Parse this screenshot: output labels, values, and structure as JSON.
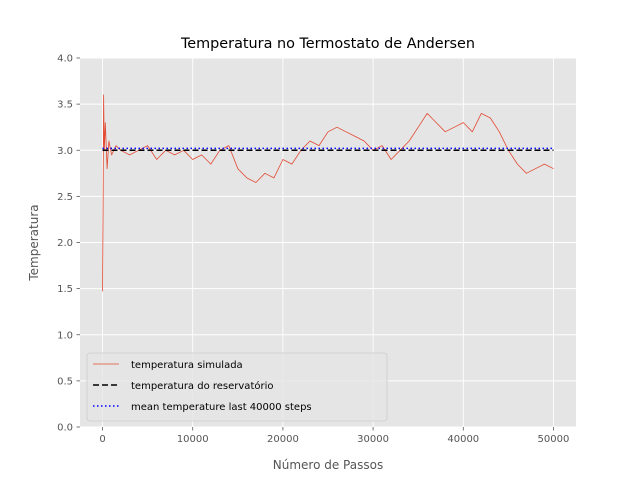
{
  "chart_data": {
    "type": "line",
    "title": "Temperatura no Termostato de Andersen",
    "xlabel": "Número de Passos",
    "ylabel": "Temperatura",
    "xlim": [
      -2500,
      52500
    ],
    "ylim": [
      0.0,
      4.0
    ],
    "xticks": [
      0,
      10000,
      20000,
      30000,
      40000,
      50000
    ],
    "yticks": [
      0.0,
      0.5,
      1.0,
      1.5,
      2.0,
      2.5,
      3.0,
      3.5,
      4.0
    ],
    "xtick_labels": [
      "0",
      "10000",
      "20000",
      "30000",
      "40000",
      "50000"
    ],
    "ytick_labels": [
      "0.0",
      "0.5",
      "1.0",
      "1.5",
      "2.0",
      "2.5",
      "3.0",
      "3.5",
      "4.0"
    ],
    "grid": true,
    "legend_placement": "lower-left",
    "series": [
      {
        "name": "temperatura simulada",
        "style": "solid",
        "color": "#e24a33",
        "x": [
          0,
          60,
          120,
          200,
          300,
          500,
          700,
          1000,
          1500,
          2000,
          3000,
          4000,
          5000,
          6000,
          7000,
          8000,
          9000,
          10000,
          11000,
          12000,
          13000,
          14000,
          15000,
          16000,
          17000,
          18000,
          19000,
          20000,
          21000,
          22000,
          23000,
          24000,
          25000,
          26000,
          27000,
          28000,
          29000,
          30000,
          31000,
          32000,
          33000,
          34000,
          35000,
          36000,
          37000,
          38000,
          39000,
          40000,
          41000,
          42000,
          43000,
          44000,
          45000,
          46000,
          47000,
          48000,
          49000,
          50000
        ],
        "values": [
          1.47,
          2.4,
          3.6,
          3.0,
          3.3,
          2.8,
          3.1,
          2.95,
          3.05,
          3.0,
          2.95,
          3.0,
          3.05,
          2.9,
          3.0,
          2.95,
          3.0,
          2.9,
          2.95,
          2.85,
          3.0,
          3.05,
          2.8,
          2.7,
          2.65,
          2.75,
          2.7,
          2.9,
          2.85,
          3.0,
          3.1,
          3.05,
          3.2,
          3.25,
          3.2,
          3.15,
          3.1,
          3.0,
          3.05,
          2.9,
          3.0,
          3.1,
          3.25,
          3.4,
          3.3,
          3.2,
          3.25,
          3.3,
          3.2,
          3.4,
          3.35,
          3.2,
          3.0,
          2.85,
          2.75,
          2.8,
          2.85,
          2.8
        ]
      },
      {
        "name": "temperatura do reservatório",
        "style": "dashed",
        "color": "#000000",
        "x": [
          0,
          50000
        ],
        "values": [
          3.0,
          3.0
        ]
      },
      {
        "name": "mean temperature last 40000 steps",
        "style": "dotted",
        "color": "#0000ff",
        "x": [
          0,
          50000
        ],
        "values": [
          3.02,
          3.02
        ]
      }
    ]
  }
}
